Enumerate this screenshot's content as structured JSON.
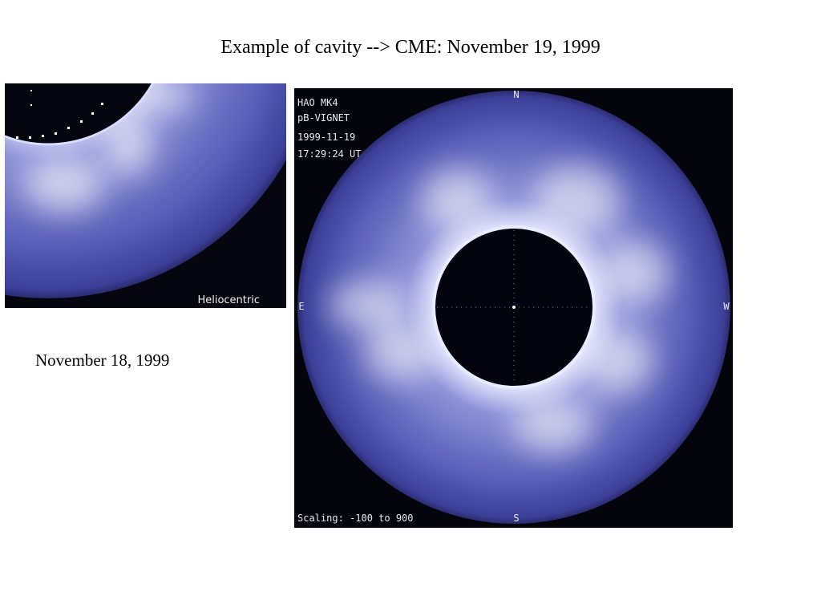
{
  "title": "Example of cavity --> CME: November 19, 1999",
  "left_image": {
    "label": "Heliocentric",
    "caption": "November 18, 1999"
  },
  "right_image": {
    "info": [
      "HAO MK4",
      "pB-VIGNET",
      "1999-11-19",
      "17:29:24 UT"
    ],
    "compass": {
      "north": "N",
      "east": "E",
      "west": "W",
      "south": "S"
    },
    "scaling": "Scaling: -100 to 900"
  }
}
